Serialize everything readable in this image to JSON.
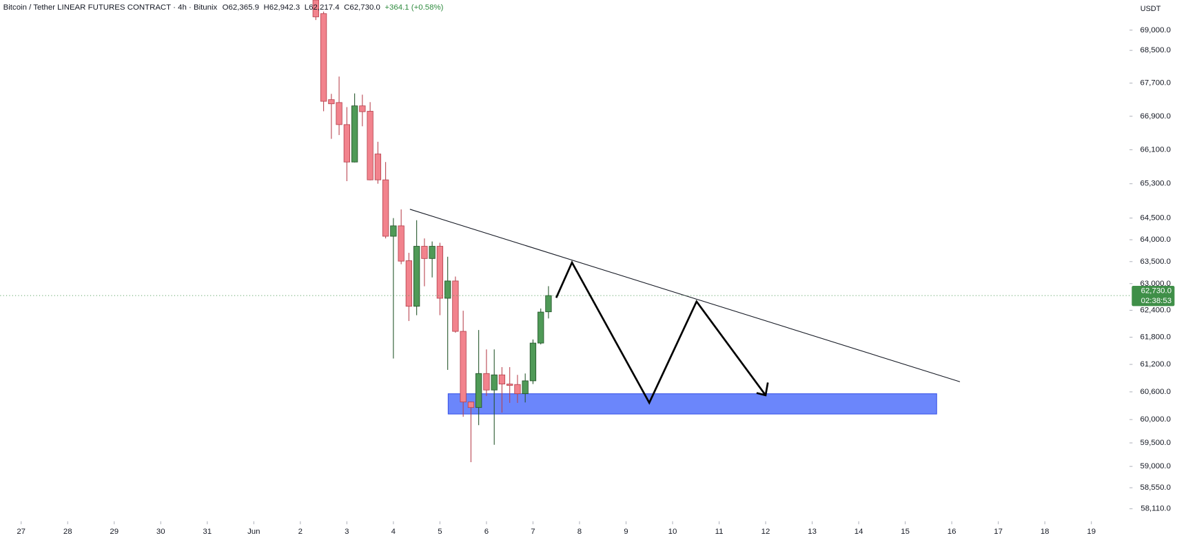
{
  "chart_data": {
    "type": "candlestick",
    "title": "Bitcoin / Tether LINEAR FUTURES CONTRACT · 4h · Bitunix",
    "legend_values": [
      "O62,365.9",
      "H62,942.3",
      "L62,217.4",
      "C62,730.0",
      "+364.1 (+0.58%)"
    ],
    "currency": "USDT",
    "x": [
      33.333,
      33.5,
      33.667,
      33.833,
      34,
      34.167,
      34.333,
      34.5,
      34.667,
      34.833,
      35,
      35.167,
      35.333,
      35.5,
      35.667,
      35.833,
      36,
      36.167,
      36.333,
      36.5,
      36.667,
      36.833,
      37,
      37.167,
      37.333,
      37.5,
      37.667,
      37.833,
      38,
      38.167,
      38.333
    ],
    "open": [
      69750,
      69410,
      67300,
      67230,
      66700,
      65810,
      67150,
      67020,
      66000,
      65390,
      64080,
      64320,
      63520,
      62490,
      63850,
      63570,
      63850,
      62670,
      63060,
      61930,
      60380,
      60260,
      61000,
      60640,
      60970,
      60770,
      60760,
      60560,
      60840,
      61670,
      62365.9
    ],
    "high": [
      69900,
      69460,
      67440,
      67860,
      67120,
      67450,
      67420,
      67240,
      66290,
      65810,
      64500,
      64700,
      63700,
      64450,
      64030,
      63960,
      63930,
      63610,
      63160,
      62390,
      60390,
      61960,
      61530,
      61530,
      61140,
      61140,
      60970,
      61000,
      61750,
      62440,
      62942.3
    ],
    "low": [
      69250,
      67020,
      66360,
      66450,
      65360,
      65800,
      66660,
      65380,
      65300,
      64030,
      61330,
      63440,
      62160,
      62290,
      62940,
      63140,
      62290,
      61080,
      61900,
      60060,
      59090,
      59880,
      60510,
      59460,
      60150,
      60360,
      60360,
      60370,
      60770,
      61640,
      62217.4
    ],
    "close": [
      69330,
      67260,
      67200,
      66700,
      65810,
      67150,
      67010,
      65390,
      65390,
      64080,
      64320,
      63510,
      62490,
      63850,
      63570,
      63850,
      62670,
      63060,
      61930,
      60380,
      60260,
      61000,
      60640,
      60970,
      60770,
      60740,
      60560,
      60840,
      61670,
      62360,
      62730
    ],
    "up_color": "#4f9a57",
    "down_color": "#f2838d",
    "log_scale": true,
    "grid": false,
    "xlim": [
      26.55,
      50.82
    ],
    "xticks": [
      27,
      28,
      29,
      30,
      31,
      {
        "value": 32,
        "label": "Jun"
      },
      {
        "value": 33,
        "label": "2"
      },
      {
        "value": 34,
        "label": "3"
      },
      {
        "value": 35,
        "label": "4"
      },
      {
        "value": 36,
        "label": "5"
      },
      {
        "value": 37,
        "label": "6"
      },
      {
        "value": 38,
        "label": "7"
      },
      {
        "value": 39,
        "label": "8"
      },
      {
        "value": 40,
        "label": "9"
      },
      {
        "value": 41,
        "label": "10"
      },
      {
        "value": 42,
        "label": "11"
      },
      {
        "value": 43,
        "label": "12"
      },
      {
        "value": 44,
        "label": "13"
      },
      {
        "value": 45,
        "label": "14"
      },
      {
        "value": 46,
        "label": "15"
      },
      {
        "value": 47,
        "label": "16"
      },
      {
        "value": 48,
        "label": "17"
      },
      {
        "value": 49,
        "label": "18"
      },
      {
        "value": 50,
        "label": "19"
      }
    ],
    "ylim": [
      57850,
      69750
    ],
    "yticks": [
      {
        "value": 69000,
        "label": "69,000.0"
      },
      {
        "value": 68500,
        "label": "68,500.0"
      },
      {
        "value": 67700,
        "label": "67,700.0"
      },
      {
        "value": 66900,
        "label": "66,900.0"
      },
      {
        "value": 66100,
        "label": "66,100.0"
      },
      {
        "value": 65300,
        "label": "65,300.0"
      },
      {
        "value": 64500,
        "label": "64,500.0"
      },
      {
        "value": 64000,
        "label": "64,000.0"
      },
      {
        "value": 63500,
        "label": "63,500.0"
      },
      {
        "value": 63000,
        "label": "63,000.0"
      },
      {
        "value": 62400,
        "label": "62,400.0"
      },
      {
        "value": 61800,
        "label": "61,800.0"
      },
      {
        "value": 61200,
        "label": "61,200.0"
      },
      {
        "value": 60600,
        "label": "60,600.0"
      },
      {
        "value": 60000,
        "label": "60,000.0"
      },
      {
        "value": 59500,
        "label": "59,500.0"
      },
      {
        "value": 59000,
        "label": "59,000.0"
      },
      {
        "value": 58550,
        "label": "58,550.0"
      },
      {
        "value": 58110,
        "label": "58,110.0"
      }
    ],
    "last_price": {
      "value": 62730,
      "label": "62,730.0",
      "countdown": "02:38:53"
    }
  }
}
